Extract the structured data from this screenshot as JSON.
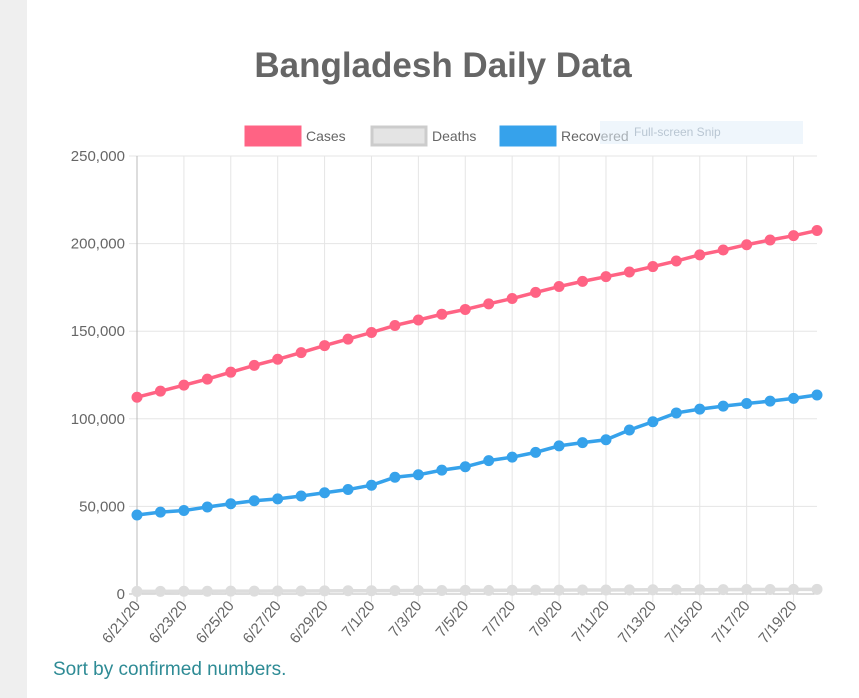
{
  "page": {
    "sort_link": "Sort by confirmed numbers.",
    "overlay_text": "Full-screen Snip"
  },
  "chart_data": {
    "type": "line",
    "title": "Bangladesh Daily Data",
    "xlabel": "",
    "ylabel": "",
    "ylim": [
      0,
      250000
    ],
    "yticks": [
      0,
      50000,
      100000,
      150000,
      200000,
      250000
    ],
    "grid": true,
    "legend_position": "top",
    "x": [
      "6/21/20",
      "6/22/20",
      "6/23/20",
      "6/24/20",
      "6/25/20",
      "6/26/20",
      "6/27/20",
      "6/28/20",
      "6/29/20",
      "6/30/20",
      "7/1/20",
      "7/2/20",
      "7/3/20",
      "7/4/20",
      "7/5/20",
      "7/6/20",
      "7/7/20",
      "7/8/20",
      "7/9/20",
      "7/10/20",
      "7/11/20",
      "7/12/20",
      "7/13/20",
      "7/14/20",
      "7/15/20",
      "7/16/20",
      "7/17/20",
      "7/18/20",
      "7/19/20",
      "7/20/20"
    ],
    "x_tick_labels": [
      "6/21/20",
      "6/23/20",
      "6/25/20",
      "6/27/20",
      "6/29/20",
      "7/1/20",
      "7/3/20",
      "7/5/20",
      "7/7/20",
      "7/9/20",
      "7/11/20",
      "7/13/20",
      "7/15/20",
      "7/17/20",
      "7/19/20"
    ],
    "series": [
      {
        "name": "Cases",
        "color": "#ff6384",
        "values": [
          112306,
          115786,
          119198,
          122660,
          126606,
          130474,
          133978,
          137787,
          141801,
          145483,
          149258,
          153277,
          156391,
          159679,
          162417,
          165618,
          168645,
          172134,
          175494,
          178443,
          181129,
          183795,
          186894,
          190057,
          193590,
          196323,
          199357,
          202066,
          204525,
          207453
        ]
      },
      {
        "name": "Deaths",
        "color": "#dddddd",
        "values": [
          1464,
          1502,
          1545,
          1582,
          1621,
          1661,
          1695,
          1738,
          1783,
          1847,
          1888,
          1926,
          1968,
          1997,
          2052,
          2096,
          2151,
          2197,
          2238,
          2275,
          2305,
          2352,
          2391,
          2424,
          2457,
          2496,
          2547,
          2581,
          2618,
          2668
        ]
      },
      {
        "name": "Recovered",
        "color": "#36a2eb",
        "values": [
          45077,
          46755,
          47635,
          49666,
          51498,
          53207,
          54318,
          55912,
          57780,
          59624,
          62083,
          66647,
          68048,
          70721,
          72625,
          76149,
          78102,
          80838,
          84544,
          86406,
          88034,
          93614,
          98317,
          103340,
          105529,
          107234,
          108725,
          110098,
          111642,
          113589
        ]
      }
    ]
  }
}
